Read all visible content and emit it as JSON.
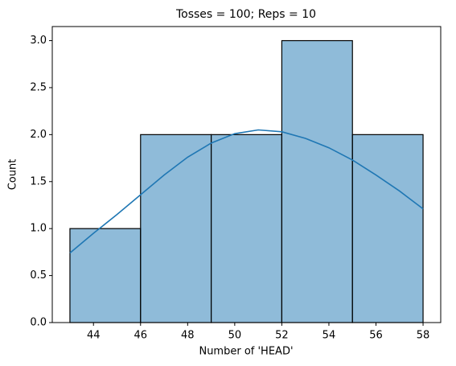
{
  "chart_data": {
    "type": "histogram",
    "title": "Tosses = 100; Reps = 10",
    "x_label": "Number of 'HEAD'",
    "y_label": "Count",
    "bins": [
      43,
      46,
      49,
      52,
      55,
      58
    ],
    "values": [
      1,
      2,
      2,
      3,
      2
    ],
    "color": "#1f77b4",
    "edge_color": "#000000",
    "kde": {
      "x": [
        43,
        44,
        45,
        46,
        47,
        48,
        49,
        50,
        51,
        52,
        53,
        54,
        55,
        56,
        57,
        58
      ],
      "y": [
        0.74,
        0.95,
        1.15,
        1.36,
        1.57,
        1.76,
        1.91,
        2.01,
        2.05,
        2.03,
        1.96,
        1.86,
        1.73,
        1.57,
        1.4,
        1.21
      ],
      "color": "#1f77b4"
    },
    "xlim": [
      42.25,
      58.75
    ],
    "xticks": [
      44,
      46,
      48,
      50,
      52,
      54,
      56,
      58
    ],
    "ylim": [
      0,
      3.15
    ],
    "yticks": [
      {
        "value": 0,
        "label": "0.0"
      },
      {
        "value": 0.5,
        "label": "0.5"
      },
      {
        "value": 1,
        "label": "1.0"
      },
      {
        "value": 1.5,
        "label": "1.5"
      },
      {
        "value": 2,
        "label": "2.0"
      },
      {
        "value": 2.5,
        "label": "2.5"
      },
      {
        "value": 3,
        "label": "3.0"
      }
    ],
    "grid": false
  }
}
